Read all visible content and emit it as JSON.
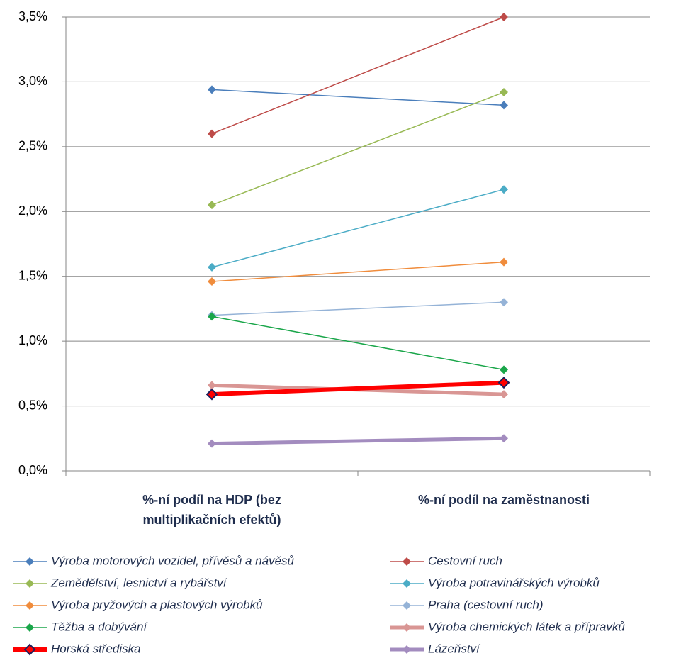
{
  "chart_data": {
    "type": "line",
    "categories": [
      "%-ní podíl na HDP (bez multiplikačních efektů)",
      "%-ní podíl na zaměstnanosti"
    ],
    "ylim": [
      0,
      3.5
    ],
    "yticks": [
      {
        "value": 0,
        "label": "0,0%"
      },
      {
        "value": 0.5,
        "label": "0,5%"
      },
      {
        "value": 1,
        "label": "1,0%"
      },
      {
        "value": 1.5,
        "label": "1,5%"
      },
      {
        "value": 2,
        "label": "2,0%"
      },
      {
        "value": 2.5,
        "label": "2,5%"
      },
      {
        "value": 3,
        "label": "3,0%"
      },
      {
        "value": 3.5,
        "label": "3,5%"
      }
    ],
    "grid": true,
    "series": [
      {
        "name": "Výroba motorových vozidel, přívěsů a návěsů",
        "color": "#4a7ebb",
        "values": [
          2.94,
          2.82
        ]
      },
      {
        "name": "Cestovní ruch",
        "color": "#be4b48",
        "values": [
          2.6,
          3.5
        ]
      },
      {
        "name": "Zemědělství, lesnictví a rybářství",
        "color": "#98b954",
        "values": [
          2.05,
          2.92
        ]
      },
      {
        "name": "Výroba potravinářských  výrobků",
        "color": "#4bacc6",
        "values": [
          1.57,
          2.17
        ]
      },
      {
        "name": "Výroba pryžových  a plastových výrobků",
        "color": "#f08c3c",
        "values": [
          1.46,
          1.61
        ]
      },
      {
        "name": "Praha (cestovní ruch)",
        "color": "#95b3d7",
        "values": [
          1.2,
          1.3
        ]
      },
      {
        "name": "Těžba a dobývání",
        "color": "#1aa64a",
        "values": [
          1.19,
          0.78
        ]
      },
      {
        "name": "Výroba chemických látek a přípravků",
        "color": "#d99694",
        "values": [
          0.66,
          0.59
        ]
      },
      {
        "name": "Horská střediska",
        "color": "#ff0000",
        "values": [
          0.59,
          0.68
        ]
      },
      {
        "name": "Lázeňství",
        "color": "#a38cbf",
        "values": [
          0.21,
          0.25
        ]
      }
    ]
  }
}
